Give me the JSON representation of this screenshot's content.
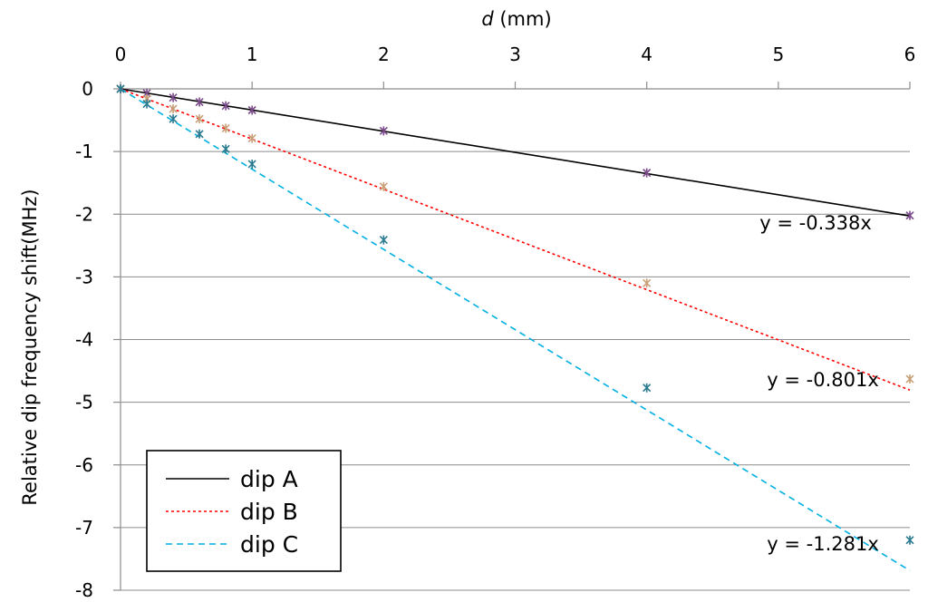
{
  "chart_data": {
    "type": "scatter",
    "title": "",
    "xlabel_var": "d",
    "xlabel_unit": " (mm)",
    "ylabel": "Relative dip frequency shift(MHz)",
    "xlim": [
      0,
      6
    ],
    "ylim": [
      -8,
      0
    ],
    "x_ticks": [
      0,
      1,
      2,
      3,
      4,
      5,
      6
    ],
    "y_ticks": [
      0,
      -1,
      -2,
      -3,
      -4,
      -5,
      -6,
      -7,
      -8
    ],
    "x_axis_position": "top",
    "grid": "horizontal",
    "legend_position": "bottom-left",
    "series": [
      {
        "name": "dip A",
        "color": "#000000",
        "line_style": "solid",
        "marker_color": "#7a4a8a",
        "slope": -0.338,
        "trendline_label": "y =  -0.338x",
        "x": [
          0,
          0.2,
          0.4,
          0.6,
          0.8,
          1,
          2,
          4,
          6
        ],
        "y": [
          0,
          -0.07,
          -0.14,
          -0.21,
          -0.27,
          -0.34,
          -0.67,
          -1.34,
          -2.02
        ]
      },
      {
        "name": "dip B",
        "color": "#ff0000",
        "line_style": "dotted",
        "marker_color": "#c8a078",
        "slope": -0.801,
        "trendline_label": "y =  -0.801x",
        "x": [
          0,
          0.2,
          0.4,
          0.6,
          0.8,
          1,
          2,
          4,
          6
        ],
        "y": [
          0,
          -0.16,
          -0.32,
          -0.48,
          -0.63,
          -0.79,
          -1.56,
          -3.1,
          -4.63
        ]
      },
      {
        "name": "dip C",
        "color": "#00b0e0",
        "line_style": "dashed",
        "marker_color": "#2a7a90",
        "slope": -1.281,
        "trendline_label": "y =  -1.281x",
        "x": [
          0,
          0.2,
          0.4,
          0.6,
          0.8,
          1,
          2,
          4,
          6
        ],
        "y": [
          0,
          -0.24,
          -0.48,
          -0.72,
          -0.96,
          -1.2,
          -2.41,
          -4.77,
          -7.2
        ]
      }
    ]
  }
}
